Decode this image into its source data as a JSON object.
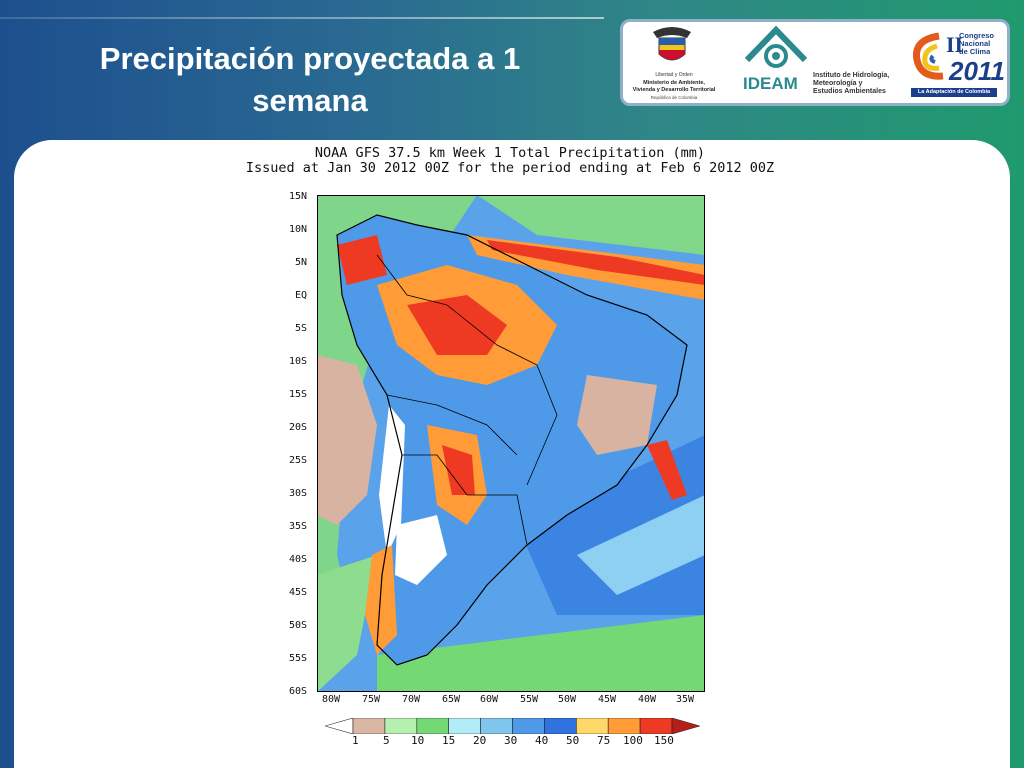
{
  "slide": {
    "title": "Precipitación proyectada a 1 semana"
  },
  "logos": {
    "ministry": {
      "motto": "Libertad y Orden",
      "line1": "Ministerio de Ambiente,",
      "line2": "Vivienda y Desarrollo Territorial",
      "line3": "República de Colombia"
    },
    "ideam": {
      "name": "IDEAM",
      "line1": "Instituto de Hidrología,",
      "line2": "Meteorología y",
      "line3": "Estudios Ambientales"
    },
    "congreso": {
      "numeral": "II",
      "line1": "Congreso",
      "line2": "Nacional",
      "line3": "de Clima",
      "year": "2011",
      "tagline": "La Adaptación de Colombia"
    }
  },
  "map": {
    "title_line1": "NOAA GFS 37.5 km Week 1 Total Precipitation (mm)",
    "title_line2": "Issued at Jan 30 2012 00Z for the period ending at Feb 6 2012 00Z",
    "lat_labels": [
      "15N",
      "10N",
      "5N",
      "EQ",
      "5S",
      "10S",
      "15S",
      "20S",
      "25S",
      "30S",
      "35S",
      "40S",
      "45S",
      "50S",
      "55S",
      "60S"
    ],
    "lon_labels": [
      "80W",
      "75W",
      "70W",
      "65W",
      "60W",
      "55W",
      "50W",
      "45W",
      "40W",
      "35W"
    ],
    "colorbar": {
      "ticks": [
        "1",
        "5",
        "10",
        "15",
        "20",
        "30",
        "40",
        "50",
        "75",
        "100",
        "150"
      ],
      "colors": [
        "#ffffff",
        "#d9b7a3",
        "#b6f0b0",
        "#74d874",
        "#b2ecf6",
        "#7fc6ee",
        "#4f9ae8",
        "#2f72e0",
        "#ffd86a",
        "#ff9c38",
        "#ee3a22",
        "#b81e17"
      ]
    }
  }
}
